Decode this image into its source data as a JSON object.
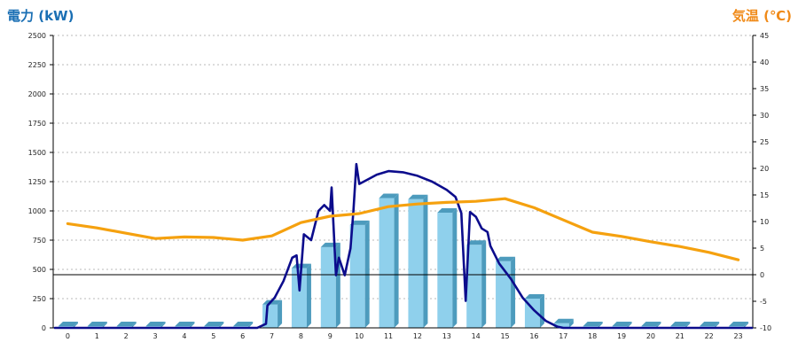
{
  "chart_data": {
    "type": "bar",
    "left_axis_title": "電力 (kW)",
    "right_axis_title": "気温 (℃)",
    "colors": {
      "left_title": "#1a6fb4",
      "right_title": "#f08a18",
      "bar_front": "#8fd0ec",
      "bar_side": "#4d9bbd",
      "bar_top": "#c9ecf8",
      "power_line": "#0c0c8c",
      "temp_line": "#f5a10f",
      "grid": "#b8b8b8",
      "axis": "#000000"
    },
    "x_categories": [
      "0",
      "1",
      "2",
      "3",
      "4",
      "5",
      "6",
      "7",
      "8",
      "9",
      "10",
      "11",
      "12",
      "13",
      "14",
      "15",
      "16",
      "17",
      "18",
      "19",
      "20",
      "21",
      "22",
      "23"
    ],
    "ylim_left": [
      0,
      2500
    ],
    "yticks_left": [
      "0",
      "250",
      "500",
      "750",
      "1000",
      "1250",
      "1500",
      "1750",
      "2000",
      "2250",
      "2500"
    ],
    "ylim_right": [
      -10,
      45
    ],
    "yticks_right": [
      "-10",
      "-5",
      "0",
      "5",
      "10",
      "15",
      "20",
      "25",
      "30",
      "35",
      "40",
      "45"
    ],
    "grid": true,
    "reference_line_right": 0,
    "series": [
      {
        "kind": "bar",
        "axis": "left",
        "values": [
          15,
          15,
          15,
          15,
          15,
          15,
          15,
          200,
          510,
          690,
          880,
          1110,
          1100,
          985,
          710,
          570,
          250,
          40,
          15,
          15,
          15,
          15,
          15,
          15
        ]
      },
      {
        "kind": "line",
        "axis": "left",
        "color_key": "power_line",
        "points": [
          [
            -0.5,
            0
          ],
          [
            6.5,
            0
          ],
          [
            6.8,
            35
          ],
          [
            6.85,
            190
          ],
          [
            7.1,
            260
          ],
          [
            7.4,
            400
          ],
          [
            7.7,
            600
          ],
          [
            7.85,
            620
          ],
          [
            7.95,
            320
          ],
          [
            8.1,
            800
          ],
          [
            8.35,
            750
          ],
          [
            8.6,
            1000
          ],
          [
            8.8,
            1050
          ],
          [
            9.0,
            1000
          ],
          [
            9.05,
            1200
          ],
          [
            9.2,
            450
          ],
          [
            9.3,
            600
          ],
          [
            9.5,
            450
          ],
          [
            9.7,
            680
          ],
          [
            9.8,
            1000
          ],
          [
            9.9,
            1400
          ],
          [
            10.0,
            1230
          ],
          [
            10.3,
            1270
          ],
          [
            10.6,
            1310
          ],
          [
            11.0,
            1340
          ],
          [
            11.5,
            1330
          ],
          [
            12.0,
            1300
          ],
          [
            12.5,
            1250
          ],
          [
            13.0,
            1180
          ],
          [
            13.3,
            1120
          ],
          [
            13.5,
            980
          ],
          [
            13.65,
            230
          ],
          [
            13.8,
            990
          ],
          [
            14.0,
            950
          ],
          [
            14.2,
            850
          ],
          [
            14.4,
            820
          ],
          [
            14.5,
            700
          ],
          [
            14.8,
            550
          ],
          [
            15.2,
            420
          ],
          [
            15.6,
            260
          ],
          [
            16.0,
            150
          ],
          [
            16.4,
            60
          ],
          [
            16.8,
            10
          ],
          [
            17.0,
            0
          ],
          [
            23.5,
            0
          ]
        ]
      },
      {
        "kind": "line",
        "axis": "right",
        "color_key": "temp_line",
        "points": [
          [
            0,
            9.6
          ],
          [
            1,
            8.8
          ],
          [
            2,
            7.8
          ],
          [
            3,
            6.8
          ],
          [
            4,
            7.1
          ],
          [
            5,
            7.0
          ],
          [
            6,
            6.5
          ],
          [
            7,
            7.3
          ],
          [
            8,
            9.8
          ],
          [
            9,
            11.0
          ],
          [
            10,
            11.5
          ],
          [
            11,
            12.8
          ],
          [
            12,
            13.3
          ],
          [
            13,
            13.6
          ],
          [
            14,
            13.8
          ],
          [
            15,
            14.3
          ],
          [
            16,
            12.6
          ],
          [
            17,
            10.3
          ],
          [
            18,
            8.0
          ],
          [
            19,
            7.2
          ],
          [
            20,
            6.2
          ],
          [
            21,
            5.3
          ],
          [
            22,
            4.2
          ],
          [
            23,
            2.8
          ]
        ]
      }
    ]
  }
}
